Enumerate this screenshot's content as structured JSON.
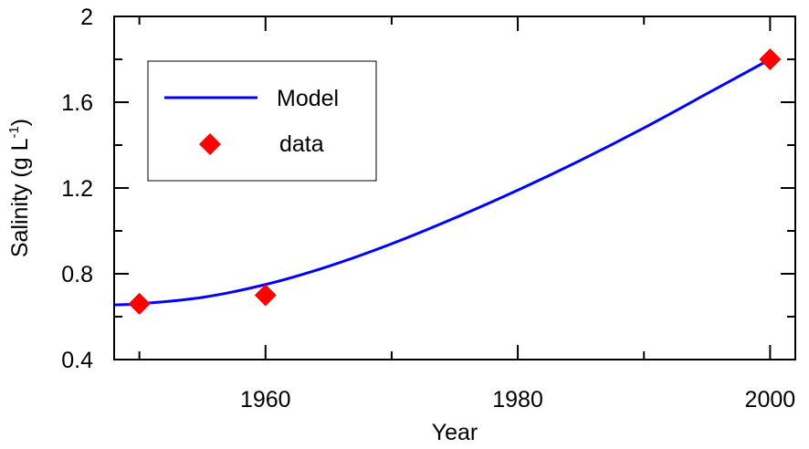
{
  "chart_data": {
    "type": "line",
    "xlabel": "Year",
    "ylabel": "Salinity (g L",
    "ylabel_sup": "-1",
    "ylabel_tail": ")",
    "xlim": [
      1948,
      2002
    ],
    "ylim": [
      0.4,
      2.0
    ],
    "x_ticks": [
      1960,
      1980,
      2000
    ],
    "x_tick_labels": [
      "1960",
      "1980",
      "2000"
    ],
    "y_ticks": [
      0.4,
      0.8,
      1.2,
      1.6,
      2.0
    ],
    "y_tick_labels": [
      "0.4",
      "0.8",
      "1.2",
      "1.6",
      "2"
    ],
    "x_minor_ticks": [
      1950,
      1970,
      1990
    ],
    "y_minor_ticks": [
      0.6,
      1.0,
      1.4,
      1.8
    ],
    "grid": false,
    "legend_position": "top-left",
    "series": [
      {
        "name": "Model",
        "kind": "line",
        "color": "#0000ff",
        "x": [
          1948,
          1950,
          1955,
          1960,
          1965,
          1970,
          1975,
          1980,
          1985,
          1990,
          1995,
          2000
        ],
        "y": [
          0.655,
          0.66,
          0.69,
          0.75,
          0.835,
          0.94,
          1.06,
          1.19,
          1.33,
          1.48,
          1.64,
          1.8
        ]
      },
      {
        "name": "data",
        "kind": "scatter",
        "marker": "diamond",
        "color": "#ff0000",
        "x": [
          1950,
          1960,
          2000
        ],
        "y": [
          0.66,
          0.7,
          1.8
        ]
      }
    ]
  }
}
